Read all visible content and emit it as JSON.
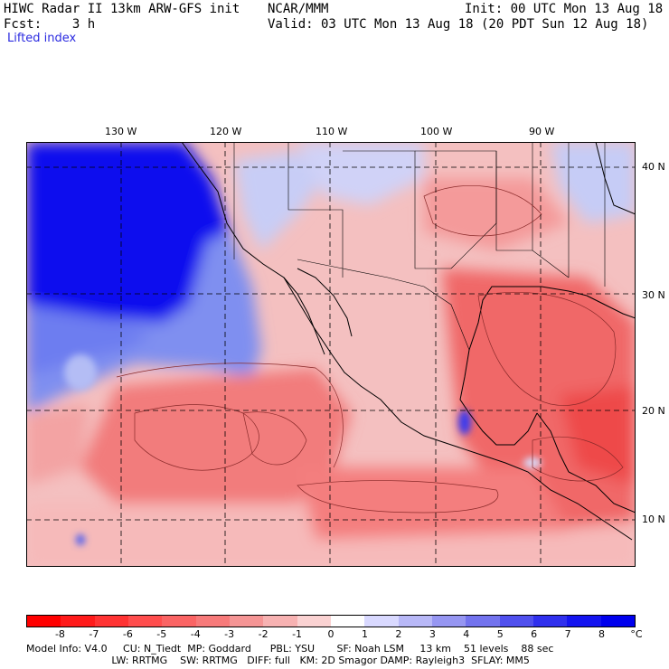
{
  "header": {
    "line1_left": "HIWC Radar II 13km ARW-GFS init",
    "line1_mid": "NCAR/MMM",
    "line1_right": "Init: 00 UTC Mon 13 Aug 18",
    "line2_left": "Fcst:    3 h",
    "line2_right": "Valid: 03 UTC Mon 13 Aug 18 (20 PDT Sun 12 Aug 18)",
    "field": "Lifted index"
  },
  "lon_labels": [
    "130 W",
    "120 W",
    "110 W",
    "100 W",
    "90 W"
  ],
  "lat_labels": [
    "40 N",
    "30 N",
    "20 N",
    "10 N"
  ],
  "colorbar": {
    "ticks": [
      "-8",
      "-7",
      "-6",
      "-5",
      "-4",
      "-3",
      "-2",
      "-1",
      "0",
      "1",
      "2",
      "3",
      "4",
      "5",
      "6",
      "7",
      "8"
    ],
    "unit": "°C",
    "colors": [
      "#ff0000",
      "#ff1a1a",
      "#ff3333",
      "#ff4d4d",
      "#fa6464",
      "#f77a7a",
      "#f59595",
      "#f7b2b2",
      "#fad2d2",
      "#ffffff",
      "#d9d9ff",
      "#b8b8f7",
      "#9696f2",
      "#7373ee",
      "#5050ee",
      "#3030ee",
      "#1414f0",
      "#0000ee"
    ]
  },
  "model_info": {
    "line1": "Model Info: V4.0     CU: N_Tiedt  MP: Goddard      PBL: YSU       SF: Noah LSM     13 km    51 levels    88 sec",
    "line2": "                           LW: RRTMG    SW: RRTMG   DIFF: full   KM: 2D Smagor DAMP: Rayleigh3  SFLAY: MM5"
  }
}
